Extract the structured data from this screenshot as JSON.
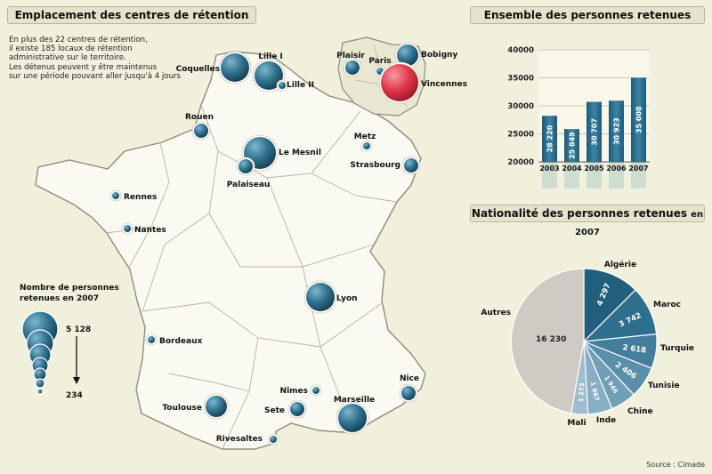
{
  "map": {
    "title": "Emplacement des centres de rétention",
    "intro_lines": [
      "En plus des 22 centres de rétention,",
      "il existe 185 locaux de rétention",
      "administrative sur le territoire.",
      "Les détenus peuvent y être maintenus",
      "sur une période pouvant aller jusqu'à 4 jours"
    ],
    "legend": {
      "title_lines": [
        "Nombre de personnes",
        "retenues en 2007"
      ],
      "max_label": "5 128",
      "min_label": "234"
    },
    "centers": [
      {
        "name": "Coquelles",
        "size": "large"
      },
      {
        "name": "Lille I",
        "size": "large"
      },
      {
        "name": "Lille II",
        "size": "tiny"
      },
      {
        "name": "Rouen",
        "size": "small"
      },
      {
        "name": "Le Mesnil",
        "size": "xlarge"
      },
      {
        "name": "Palaiseau",
        "size": "small"
      },
      {
        "name": "Metz",
        "size": "tiny"
      },
      {
        "name": "Strasbourg",
        "size": "small"
      },
      {
        "name": "Rennes",
        "size": "tiny"
      },
      {
        "name": "Nantes",
        "size": "tiny"
      },
      {
        "name": "Lyon",
        "size": "large"
      },
      {
        "name": "Bordeaux",
        "size": "tiny"
      },
      {
        "name": "Toulouse",
        "size": "medium"
      },
      {
        "name": "Nîmes",
        "size": "tiny"
      },
      {
        "name": "Sete",
        "size": "small"
      },
      {
        "name": "Marseille",
        "size": "large"
      },
      {
        "name": "Nice",
        "size": "small"
      },
      {
        "name": "Rivesaltes",
        "size": "tiny"
      },
      {
        "name": "Plaisir",
        "size": "small"
      },
      {
        "name": "Paris",
        "size": "tiny"
      },
      {
        "name": "Bobigny",
        "size": "medium"
      },
      {
        "name": "Vincennes",
        "size": "largest",
        "highlight": true
      }
    ]
  },
  "colors": {
    "background": "#f1f0dc",
    "land": "#fbfaf2",
    "circle": "#2e6f8c",
    "highlight": "#e0384a",
    "pie_autres": "#cfcac3",
    "bar": "#2e6f8c"
  },
  "source": "Source : Cimade",
  "chart_data": [
    {
      "type": "bar",
      "title": "Ensemble des personnes retenues",
      "categories": [
        "2003",
        "2004",
        "2005",
        "2006",
        "2007"
      ],
      "values": [
        28220,
        25849,
        30707,
        30923,
        35008
      ],
      "value_labels": [
        "28 220",
        "25 849",
        "30 707",
        "30 923",
        "35 008"
      ],
      "ylim": [
        20000,
        40000
      ],
      "yticks": [
        "20000",
        "25000",
        "30000",
        "35000",
        "40000"
      ],
      "grid": true
    },
    {
      "type": "pie",
      "title": "Nationalité des personnes retenues",
      "title_suffix": "en 2007",
      "labels": [
        "Algérie",
        "Maroc",
        "Turquie",
        "Tunisie",
        "Chine",
        "Inde",
        "Mali",
        "Autres"
      ],
      "values": [
        4297,
        3742,
        2618,
        2406,
        1946,
        1867,
        1273,
        16230
      ],
      "value_labels": [
        "4 297",
        "3 742",
        "2 618",
        "2 406",
        "1 946",
        "1 867",
        "1 273",
        "16 230"
      ]
    }
  ]
}
